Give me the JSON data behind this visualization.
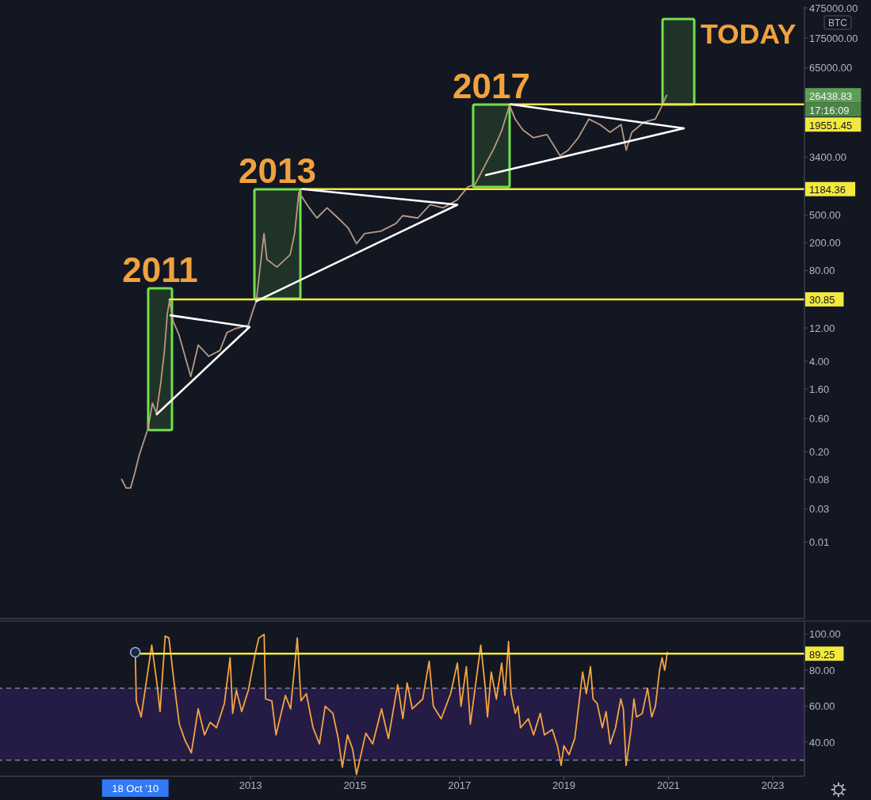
{
  "chart_data": [
    {
      "type": "line",
      "log": "y",
      "tick_labels": "y",
      "xlim": [
        "2008-03-16",
        "2023-08-10"
      ],
      "ylim": [
        0.0008,
        500000
      ],
      "yticks": [
        0.01,
        0.03,
        0.08,
        {
          "value": 0.2,
          "label": "0.20"
        },
        {
          "value": 0.6,
          "label": "0.60"
        },
        {
          "value": 1.6,
          "label": "1.60"
        },
        {
          "value": 4,
          "label": "4.00"
        },
        {
          "value": 12,
          "label": "12.00"
        },
        {
          "value": 80,
          "label": "80.00"
        },
        {
          "value": 200,
          "label": "200.00"
        },
        {
          "value": 500,
          "label": "500.00"
        },
        {
          "value": 3400,
          "label": "3400.00"
        },
        {
          "value": 65000,
          "label": "65000.00"
        },
        {
          "value": 175000,
          "label": "175000.00"
        },
        {
          "value": 475000,
          "label": "475000.00"
        }
      ],
      "annotations": [
        "2011",
        "2013",
        "2017",
        "TODAY",
        "BTC",
        "26438.83",
        "17:16:09"
      ],
      "series": [
        {
          "color": "#b89a82",
          "x": [
            "2010-07-15",
            "2010-08-15",
            "2010-09-15",
            "2010-10-15",
            "2010-11-15",
            "2011-01-15",
            "2011-02-15",
            "2011-03-15",
            "2011-04-15",
            "2011-05-10",
            "2011-05-30",
            "2011-06-15",
            "2011-07-10",
            "2011-08-20",
            "2011-11-10",
            "2012-01-01",
            "2012-03-15",
            "2012-06-01",
            "2012-07-20",
            "2012-09-15",
            "2012-12-15",
            "2013-01-20",
            "2013-02-10",
            "2013-04-05",
            "2013-04-25",
            "2013-07-05",
            "2013-10-05",
            "2013-11-05",
            "2013-12-05",
            "2014-02-15",
            "2014-04-10",
            "2014-06-20",
            "2014-09-05",
            "2014-11-15",
            "2015-01-12",
            "2015-03-10",
            "2015-07-01",
            "2015-10-15",
            "2015-12-01",
            "2016-03-15",
            "2016-06-10",
            "2016-09-10",
            "2016-12-15",
            "2017-03-01",
            "2017-04-20",
            "2017-07-05",
            "2017-09-01",
            "2017-10-25",
            "2017-12-17",
            "2018-01-25",
            "2018-03-20",
            "2018-06-01",
            "2018-09-05",
            "2018-12-05",
            "2019-02-01",
            "2019-04-12",
            "2019-06-25",
            "2019-09-10",
            "2019-11-20",
            "2020-02-05",
            "2020-03-12",
            "2020-04-20",
            "2020-07-15",
            "2020-10-01",
            "2020-11-15",
            "2020-12-20"
          ],
          "values": [
            0.08,
            0.06,
            0.06,
            0.1,
            0.18,
            0.43,
            1.0,
            0.72,
            2.0,
            5.7,
            19,
            30,
            15,
            9.5,
            2.4,
            6.8,
            4.7,
            5.7,
            10.3,
            11.7,
            13,
            22,
            29,
            272,
            116,
            90,
            135,
            272,
            1067,
            637,
            455,
            637,
            455,
            326,
            195,
            272,
            294,
            380,
            492,
            455,
            706,
            637,
            824,
            1277,
            1380,
            2770,
            4640,
            8390,
            19000,
            12000,
            8390,
            6490,
            7190,
            3580,
            4300,
            6490,
            12000,
            10000,
            7770,
            10000,
            4300,
            7770,
            10900,
            12000,
            18200,
            26438.83
          ]
        },
        {
          "color": "#f2e93e",
          "x": [
            "2011-06-15",
            "2023-08-10"
          ],
          "values": [
            30.85,
            30.85
          ],
          "value_labels": [
            null,
            "30.85"
          ]
        },
        {
          "color": "#f2e93e",
          "x": [
            "2013-12-16",
            "2023-08-10"
          ],
          "values": [
            1184.36,
            1184.36
          ],
          "value_labels": [
            null,
            "1184.36"
          ]
        },
        {
          "color": "#f2e93e",
          "x": [
            "2017-12-17",
            "2023-08-10"
          ],
          "values": [
            19551.45,
            19551.45
          ],
          "value_labels": [
            null,
            "19551.45"
          ]
        },
        {
          "color": "#ffffff",
          "x": [
            "2011-06-21",
            "2012-12-25",
            "2011-03-17"
          ],
          "values": [
            18.2,
            12.4,
            0.69
          ]
        },
        {
          "color": "#ffffff",
          "x": [
            "2014-01-01",
            "2016-12-17",
            "2013-02-09"
          ],
          "values": [
            1184.36,
            706,
            29
          ]
        },
        {
          "color": "#ffffff",
          "x": [
            "2017-12-28",
            "2021-04-19",
            "2017-07-05"
          ],
          "values": [
            19551.45,
            8830,
            1880
          ]
        }
      ]
    },
    {
      "type": "line",
      "xlim": [
        "2008-03-16",
        "2023-08-10"
      ],
      "ylim": [
        21,
        107
      ],
      "xticks": [
        "2013",
        "2015",
        "2017",
        "2019",
        "2021",
        "2023"
      ],
      "yticks": [
        {
          "value": 40,
          "label": "40.00"
        },
        {
          "value": 60,
          "label": "60.00"
        },
        {
          "value": 80,
          "label": "80.00"
        },
        {
          "value": 100,
          "label": "100.00"
        }
      ],
      "bands": [
        {
          "axis": "y",
          "from": 30,
          "to": 70,
          "color": "#241c44"
        }
      ],
      "ref_lines": [
        {
          "axis": "y",
          "value": 70,
          "color": "#9598a1",
          "line_style": "dashed"
        },
        {
          "axis": "y",
          "value": 30,
          "color": "#9598a1",
          "line_style": "dashed"
        }
      ],
      "annotations": [
        "18 Oct '10"
      ],
      "series": [
        {
          "color": "#f5a442",
          "x": [
            "2010-10-18",
            "2010-10-25",
            "2010-11-28",
            "2011-02-10",
            "2011-03-18",
            "2011-04-09",
            "2011-05-15",
            "2011-06-10",
            "2011-07-27",
            "2011-08-22",
            "2011-10-01",
            "2011-11-14",
            "2012-01-01",
            "2012-02-14",
            "2012-03-25",
            "2012-05-08",
            "2012-07-02",
            "2012-08-11",
            "2012-08-29",
            "2012-09-24",
            "2012-10-31",
            "2012-12-17",
            "2013-02-03",
            "2013-02-28",
            "2013-04-06",
            "2013-04-16",
            "2013-05-30",
            "2013-06-28",
            "2013-09-02",
            "2013-10-08",
            "2013-11-24",
            "2013-12-20",
            "2014-01-26",
            "2014-03-14",
            "2014-04-28",
            "2014-06-07",
            "2014-07-31",
            "2014-09-06",
            "2014-10-05",
            "2014-11-10",
            "2014-12-16",
            "2015-01-12",
            "2015-03-18",
            "2015-05-05",
            "2015-07-06",
            "2015-08-23",
            "2015-10-27",
            "2015-12-02",
            "2016-01-01",
            "2016-02-06",
            "2016-04-19",
            "2016-06-03",
            "2016-07-02",
            "2016-08-26",
            "2016-10-31",
            "2016-12-17",
            "2017-01-12",
            "2017-02-18",
            "2017-03-18",
            "2017-05-30",
            "2017-06-28",
            "2017-07-16",
            "2017-08-11",
            "2017-09-16",
            "2017-10-23",
            "2017-11-14",
            "2017-12-10",
            "2017-12-28",
            "2018-01-26",
            "2018-02-14",
            "2018-03-04",
            "2018-04-28",
            "2018-06-03",
            "2018-07-20",
            "2018-08-18",
            "2018-10-12",
            "2018-11-17",
            "2018-12-13",
            "2019-01-01",
            "2019-02-06",
            "2019-03-18",
            "2019-04-12",
            "2019-05-12",
            "2019-06-07",
            "2019-07-06",
            "2019-07-24",
            "2019-08-22",
            "2019-09-27",
            "2019-10-23",
            "2019-11-21",
            "2019-12-28",
            "2020-02-03",
            "2020-02-21",
            "2020-03-11",
            "2020-04-16",
            "2020-05-05",
            "2020-05-23",
            "2020-07-02",
            "2020-08-08",
            "2020-09-06",
            "2020-10-02",
            "2020-10-31",
            "2020-11-18",
            "2020-12-06",
            "2020-12-24"
          ],
          "values": [
            90,
            63,
            54,
            94,
            73,
            57,
            99,
            98,
            66,
            50,
            41,
            34,
            58.5,
            44,
            51,
            48,
            61.5,
            87,
            56,
            69,
            57,
            69,
            89.5,
            98,
            100,
            64,
            63,
            44,
            66,
            58.5,
            98,
            63,
            67,
            48,
            39,
            60,
            56,
            42,
            26,
            44,
            36,
            22,
            45,
            39,
            58.5,
            42,
            72,
            53,
            73,
            58.5,
            64,
            85,
            60,
            53,
            67,
            84,
            60,
            82,
            50,
            94,
            72,
            54,
            79,
            64,
            84,
            66,
            96,
            67,
            56,
            60,
            48,
            53,
            44,
            56,
            44,
            47,
            38,
            27,
            38,
            33,
            42,
            58.5,
            79,
            67,
            82,
            64,
            61.5,
            48,
            57,
            39,
            48,
            64,
            58.5,
            27,
            48,
            64,
            54,
            56,
            70,
            54,
            60,
            80,
            87,
            80,
            90
          ]
        },
        {
          "color": "#f2e93e",
          "x": [
            "2010-10-18",
            "2023-08-10"
          ],
          "values": [
            89.25,
            89.25
          ],
          "value_labels": [
            null,
            "89.25"
          ]
        }
      ]
    }
  ]
}
